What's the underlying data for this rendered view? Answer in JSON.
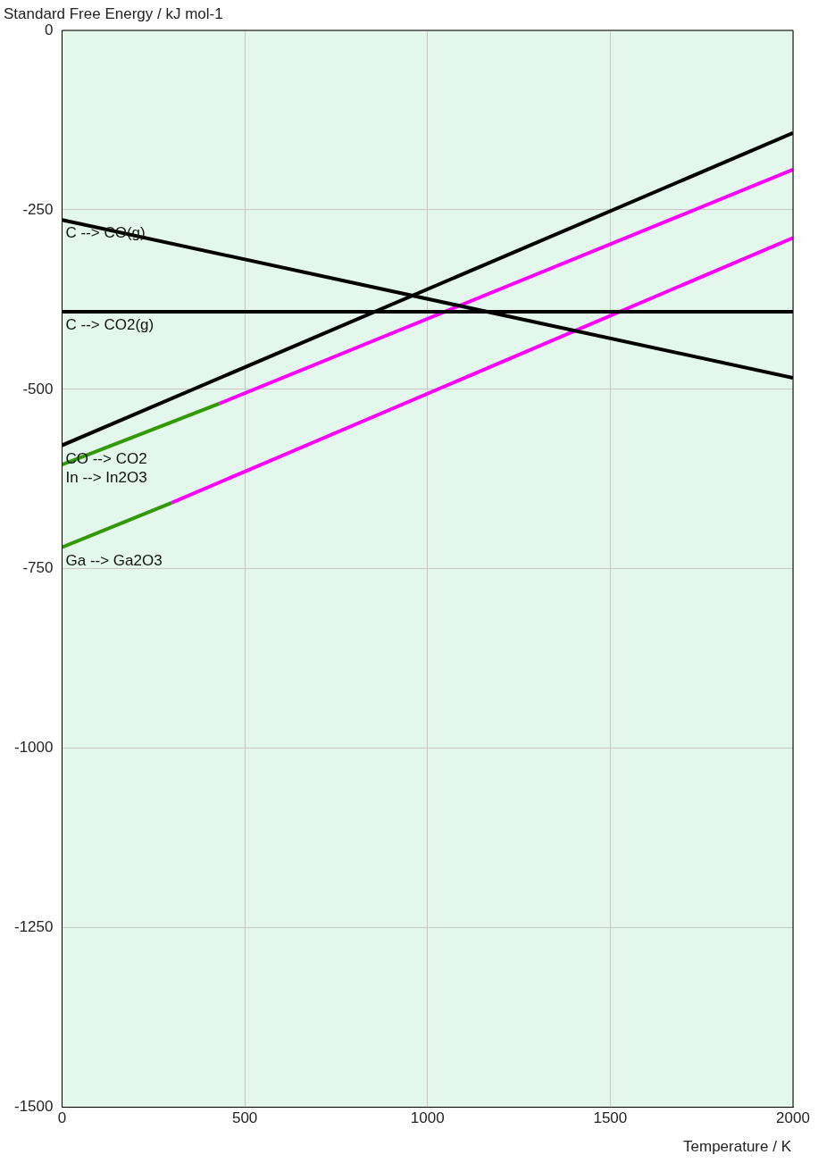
{
  "chart_data": {
    "type": "line",
    "ylabel": "Standard Free Energy / kJ mol-1",
    "xlabel": "Temperature / K",
    "xlim": [
      0,
      2000
    ],
    "xticks": [
      0,
      500,
      1000,
      1500,
      2000
    ],
    "ylim": [
      -1500,
      0
    ],
    "yticks": [
      0,
      -250,
      -500,
      -750,
      -1000,
      -1250,
      -1500
    ],
    "grid": true,
    "legend": false,
    "marker": "none",
    "line_style": "solid",
    "series": [
      {
        "name": "C --> CO(g)",
        "color": "#000000",
        "x": [
          0,
          2000
        ],
        "values": [
          -264,
          -484
        ]
      },
      {
        "name": "C --> CO2(g)",
        "color": "#000000",
        "x": [
          0,
          2000
        ],
        "values": [
          -392,
          -392
        ]
      },
      {
        "name": "CO --> CO2",
        "color": "#000000",
        "x": [
          0,
          2000
        ],
        "values": [
          -578,
          -143
        ]
      },
      {
        "name": "In --> In2O3",
        "color": "#339900",
        "x": [
          0,
          430
        ],
        "values": [
          -605,
          -520
        ]
      },
      {
        "color": "#ff00ff",
        "x": [
          430,
          2000
        ],
        "values": [
          -520,
          -194
        ]
      },
      {
        "name": "Ga --> Ga2O3",
        "color": "#339900",
        "x": [
          0,
          300
        ],
        "values": [
          -720,
          -658
        ]
      },
      {
        "color": "#ff00ff",
        "x": [
          300,
          2000
        ],
        "values": [
          -658,
          -289
        ]
      }
    ]
  }
}
